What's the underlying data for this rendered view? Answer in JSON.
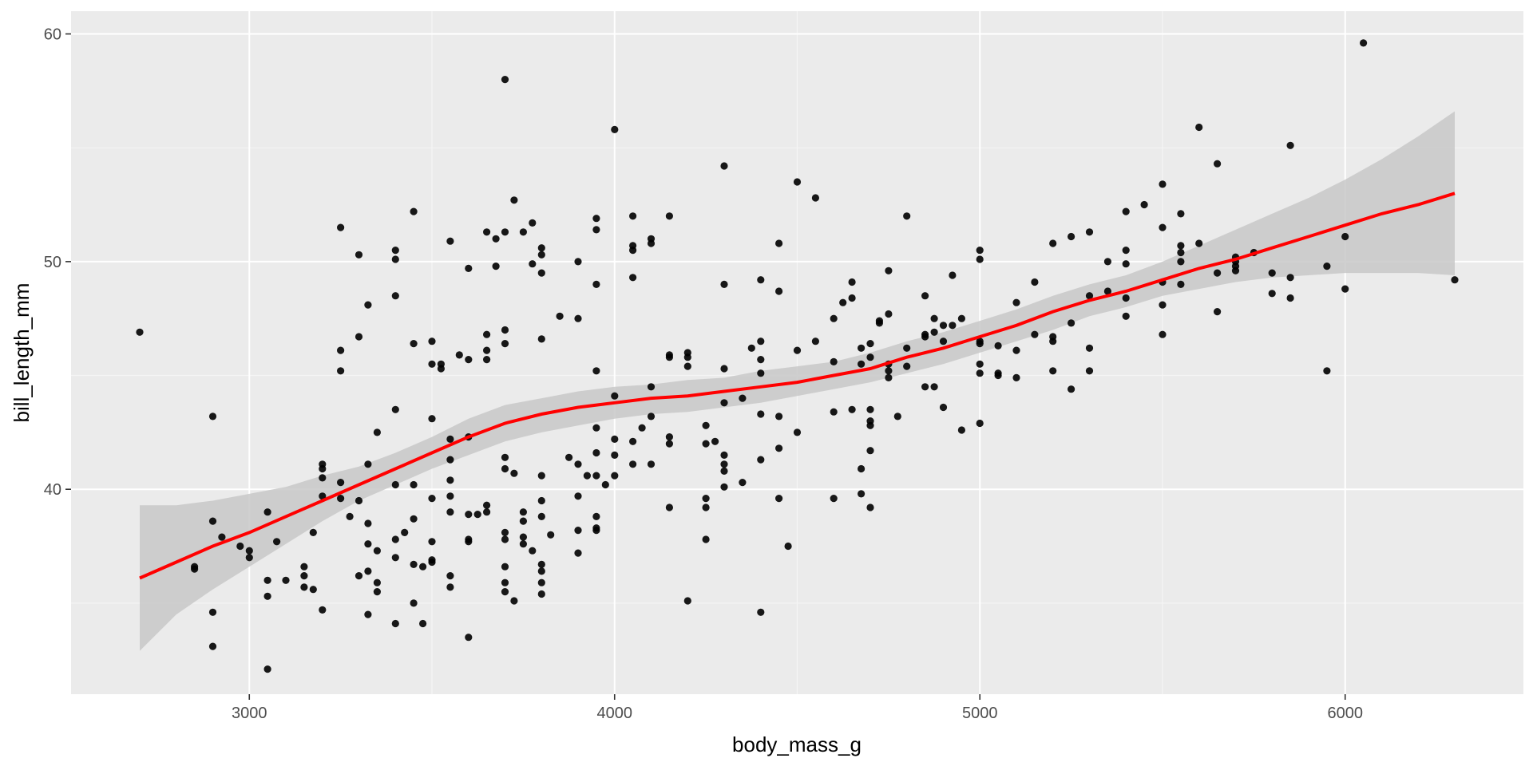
{
  "chart_data": {
    "type": "scatter",
    "xlabel": "body_mass_g",
    "ylabel": "bill_length_mm",
    "xlim": [
      2512,
      6488
    ],
    "ylim": [
      31.0,
      61.0
    ],
    "x_ticks": [
      3000,
      4000,
      5000,
      6000
    ],
    "x_tick_labels": [
      "3000",
      "4000",
      "5000",
      "6000"
    ],
    "y_ticks": [
      40,
      50,
      60
    ],
    "y_tick_labels": [
      "40",
      "50",
      "60"
    ],
    "grid": true,
    "legend": "none",
    "colors": {
      "panel_background": "#ebebeb",
      "grid_major": "#ffffff",
      "point": "#000000",
      "smooth_line": "#ff0000",
      "confidence_band": "#c8c8c8"
    },
    "points": [
      [
        2700,
        46.9
      ],
      [
        2850,
        36.5
      ],
      [
        2850,
        36.6
      ],
      [
        2900,
        43.2
      ],
      [
        2900,
        38.6
      ],
      [
        2900,
        34.6
      ],
      [
        2900,
        33.1
      ],
      [
        2925,
        37.9
      ],
      [
        2975,
        37.5
      ],
      [
        3000,
        37.0
      ],
      [
        3000,
        37.3
      ],
      [
        3050,
        39.0
      ],
      [
        3050,
        36.0
      ],
      [
        3050,
        35.3
      ],
      [
        3050,
        32.1
      ],
      [
        3075,
        37.7
      ],
      [
        3100,
        36.0
      ],
      [
        3150,
        36.6
      ],
      [
        3150,
        36.2
      ],
      [
        3150,
        35.7
      ],
      [
        3175,
        38.1
      ],
      [
        3175,
        35.6
      ],
      [
        3200,
        41.1
      ],
      [
        3200,
        40.9
      ],
      [
        3200,
        40.5
      ],
      [
        3200,
        39.7
      ],
      [
        3200,
        34.7
      ],
      [
        3250,
        51.5
      ],
      [
        3250,
        46.1
      ],
      [
        3250,
        45.2
      ],
      [
        3250,
        40.3
      ],
      [
        3250,
        39.6
      ],
      [
        3275,
        38.8
      ],
      [
        3300,
        50.3
      ],
      [
        3300,
        46.7
      ],
      [
        3300,
        39.5
      ],
      [
        3300,
        36.2
      ],
      [
        3325,
        48.1
      ],
      [
        3325,
        41.1
      ],
      [
        3325,
        38.5
      ],
      [
        3325,
        37.6
      ],
      [
        3325,
        36.4
      ],
      [
        3325,
        34.5
      ],
      [
        3350,
        42.5
      ],
      [
        3350,
        37.3
      ],
      [
        3350,
        35.9
      ],
      [
        3350,
        35.5
      ],
      [
        3400,
        50.5
      ],
      [
        3400,
        50.1
      ],
      [
        3400,
        48.5
      ],
      [
        3400,
        43.5
      ],
      [
        3400,
        40.2
      ],
      [
        3400,
        37.8
      ],
      [
        3400,
        37.0
      ],
      [
        3400,
        34.1
      ],
      [
        3425,
        38.1
      ],
      [
        3450,
        52.2
      ],
      [
        3450,
        46.4
      ],
      [
        3450,
        40.2
      ],
      [
        3450,
        38.7
      ],
      [
        3450,
        36.7
      ],
      [
        3450,
        35.0
      ],
      [
        3475,
        36.6
      ],
      [
        3475,
        34.1
      ],
      [
        3500,
        46.5
      ],
      [
        3500,
        45.5
      ],
      [
        3500,
        43.1
      ],
      [
        3500,
        39.6
      ],
      [
        3500,
        37.7
      ],
      [
        3500,
        36.9
      ],
      [
        3500,
        36.8
      ],
      [
        3525,
        45.5
      ],
      [
        3525,
        45.3
      ],
      [
        3550,
        50.9
      ],
      [
        3550,
        42.2
      ],
      [
        3550,
        41.3
      ],
      [
        3550,
        40.4
      ],
      [
        3550,
        39.7
      ],
      [
        3550,
        39.0
      ],
      [
        3550,
        36.2
      ],
      [
        3550,
        35.7
      ],
      [
        3575,
        45.9
      ],
      [
        3600,
        49.7
      ],
      [
        3600,
        45.7
      ],
      [
        3600,
        42.3
      ],
      [
        3600,
        38.9
      ],
      [
        3600,
        37.8
      ],
      [
        3600,
        37.7
      ],
      [
        3600,
        33.5
      ],
      [
        3625,
        38.9
      ],
      [
        3650,
        51.3
      ],
      [
        3650,
        46.8
      ],
      [
        3650,
        46.1
      ],
      [
        3650,
        45.7
      ],
      [
        3650,
        39.3
      ],
      [
        3650,
        39.0
      ],
      [
        3675,
        51.0
      ],
      [
        3675,
        49.8
      ],
      [
        3700,
        58.0
      ],
      [
        3700,
        51.3
      ],
      [
        3700,
        47.0
      ],
      [
        3700,
        46.4
      ],
      [
        3700,
        41.4
      ],
      [
        3700,
        40.9
      ],
      [
        3700,
        38.1
      ],
      [
        3700,
        37.8
      ],
      [
        3700,
        36.6
      ],
      [
        3700,
        35.9
      ],
      [
        3700,
        35.5
      ],
      [
        3725,
        52.7
      ],
      [
        3725,
        40.7
      ],
      [
        3725,
        35.1
      ],
      [
        3750,
        51.3
      ],
      [
        3750,
        39.0
      ],
      [
        3750,
        38.6
      ],
      [
        3750,
        37.9
      ],
      [
        3750,
        37.6
      ],
      [
        3775,
        51.7
      ],
      [
        3775,
        49.9
      ],
      [
        3775,
        37.3
      ],
      [
        3800,
        50.6
      ],
      [
        3800,
        50.3
      ],
      [
        3800,
        49.5
      ],
      [
        3800,
        46.6
      ],
      [
        3800,
        40.6
      ],
      [
        3800,
        39.5
      ],
      [
        3800,
        38.8
      ],
      [
        3800,
        36.7
      ],
      [
        3800,
        36.4
      ],
      [
        3800,
        35.9
      ],
      [
        3800,
        35.4
      ],
      [
        3825,
        38.0
      ],
      [
        3850,
        47.6
      ],
      [
        3875,
        41.4
      ],
      [
        3900,
        50.0
      ],
      [
        3900,
        47.5
      ],
      [
        3900,
        41.1
      ],
      [
        3900,
        39.7
      ],
      [
        3900,
        38.2
      ],
      [
        3900,
        37.2
      ],
      [
        3925,
        40.6
      ],
      [
        3950,
        51.9
      ],
      [
        3950,
        51.4
      ],
      [
        3950,
        49.0
      ],
      [
        3950,
        45.2
      ],
      [
        3950,
        42.7
      ],
      [
        3950,
        41.6
      ],
      [
        3950,
        40.6
      ],
      [
        3950,
        38.8
      ],
      [
        3950,
        38.3
      ],
      [
        3950,
        38.2
      ],
      [
        3975,
        40.2
      ],
      [
        4000,
        55.8
      ],
      [
        4000,
        44.1
      ],
      [
        4000,
        42.2
      ],
      [
        4000,
        41.5
      ],
      [
        4000,
        40.6
      ],
      [
        4050,
        52.0
      ],
      [
        4050,
        50.7
      ],
      [
        4050,
        50.5
      ],
      [
        4050,
        49.3
      ],
      [
        4050,
        42.1
      ],
      [
        4050,
        41.1
      ],
      [
        4075,
        42.7
      ],
      [
        4100,
        51.0
      ],
      [
        4100,
        50.8
      ],
      [
        4100,
        44.5
      ],
      [
        4100,
        43.2
      ],
      [
        4100,
        41.1
      ],
      [
        4150,
        52.0
      ],
      [
        4150,
        45.9
      ],
      [
        4150,
        45.8
      ],
      [
        4150,
        42.3
      ],
      [
        4150,
        42.0
      ],
      [
        4150,
        39.2
      ],
      [
        4200,
        46.0
      ],
      [
        4200,
        45.8
      ],
      [
        4200,
        45.4
      ],
      [
        4200,
        35.1
      ],
      [
        4250,
        42.8
      ],
      [
        4250,
        42.0
      ],
      [
        4250,
        39.6
      ],
      [
        4250,
        39.2
      ],
      [
        4250,
        37.8
      ],
      [
        4275,
        42.1
      ],
      [
        4300,
        54.2
      ],
      [
        4300,
        49.0
      ],
      [
        4300,
        45.3
      ],
      [
        4300,
        43.8
      ],
      [
        4300,
        41.5
      ],
      [
        4300,
        41.1
      ],
      [
        4300,
        40.8
      ],
      [
        4300,
        40.1
      ],
      [
        4350,
        44.0
      ],
      [
        4350,
        40.3
      ],
      [
        4375,
        46.2
      ],
      [
        4400,
        49.2
      ],
      [
        4400,
        46.5
      ],
      [
        4400,
        45.7
      ],
      [
        4400,
        45.1
      ],
      [
        4400,
        43.3
      ],
      [
        4400,
        41.3
      ],
      [
        4400,
        34.6
      ],
      [
        4450,
        50.8
      ],
      [
        4450,
        48.7
      ],
      [
        4450,
        43.2
      ],
      [
        4450,
        41.8
      ],
      [
        4450,
        39.6
      ],
      [
        4475,
        37.5
      ],
      [
        4500,
        53.5
      ],
      [
        4500,
        46.1
      ],
      [
        4500,
        42.5
      ],
      [
        4550,
        52.8
      ],
      [
        4550,
        46.5
      ],
      [
        4600,
        47.5
      ],
      [
        4600,
        45.6
      ],
      [
        4600,
        43.4
      ],
      [
        4600,
        39.6
      ],
      [
        4625,
        48.2
      ],
      [
        4650,
        49.1
      ],
      [
        4650,
        48.4
      ],
      [
        4650,
        43.5
      ],
      [
        4675,
        45.5
      ],
      [
        4675,
        46.2
      ],
      [
        4675,
        40.9
      ],
      [
        4675,
        39.8
      ],
      [
        4700,
        46.4
      ],
      [
        4700,
        45.8
      ],
      [
        4700,
        43.5
      ],
      [
        4700,
        43.0
      ],
      [
        4700,
        42.8
      ],
      [
        4700,
        41.7
      ],
      [
        4700,
        39.2
      ],
      [
        4725,
        47.3
      ],
      [
        4725,
        47.4
      ],
      [
        4750,
        49.6
      ],
      [
        4750,
        47.7
      ],
      [
        4750,
        45.5
      ],
      [
        4750,
        45.2
      ],
      [
        4750,
        44.9
      ],
      [
        4775,
        43.2
      ],
      [
        4800,
        52.0
      ],
      [
        4800,
        46.2
      ],
      [
        4800,
        45.4
      ],
      [
        4850,
        48.5
      ],
      [
        4850,
        46.7
      ],
      [
        4850,
        46.8
      ],
      [
        4850,
        44.5
      ],
      [
        4875,
        47.5
      ],
      [
        4875,
        46.9
      ],
      [
        4875,
        44.5
      ],
      [
        4900,
        47.2
      ],
      [
        4900,
        46.5
      ],
      [
        4900,
        43.6
      ],
      [
        4925,
        49.4
      ],
      [
        4925,
        47.2
      ],
      [
        4950,
        47.5
      ],
      [
        4950,
        42.6
      ],
      [
        5000,
        50.5
      ],
      [
        5000,
        50.1
      ],
      [
        5000,
        46.5
      ],
      [
        5000,
        46.4
      ],
      [
        5000,
        45.5
      ],
      [
        5000,
        45.1
      ],
      [
        5000,
        42.9
      ],
      [
        5050,
        46.3
      ],
      [
        5050,
        45.1
      ],
      [
        5050,
        45.0
      ],
      [
        5100,
        48.2
      ],
      [
        5100,
        46.1
      ],
      [
        5100,
        44.9
      ],
      [
        5150,
        49.1
      ],
      [
        5150,
        46.8
      ],
      [
        5200,
        50.8
      ],
      [
        5200,
        46.7
      ],
      [
        5200,
        46.5
      ],
      [
        5200,
        45.2
      ],
      [
        5250,
        51.1
      ],
      [
        5250,
        47.3
      ],
      [
        5250,
        44.4
      ],
      [
        5300,
        51.3
      ],
      [
        5300,
        48.5
      ],
      [
        5300,
        46.2
      ],
      [
        5300,
        45.2
      ],
      [
        5350,
        50.0
      ],
      [
        5350,
        48.7
      ],
      [
        5400,
        52.2
      ],
      [
        5400,
        50.5
      ],
      [
        5400,
        49.9
      ],
      [
        5400,
        48.4
      ],
      [
        5400,
        47.6
      ],
      [
        5450,
        52.5
      ],
      [
        5500,
        53.4
      ],
      [
        5500,
        51.5
      ],
      [
        5500,
        49.1
      ],
      [
        5500,
        48.1
      ],
      [
        5500,
        46.8
      ],
      [
        5550,
        52.1
      ],
      [
        5550,
        50.7
      ],
      [
        5550,
        50.4
      ],
      [
        5550,
        50.0
      ],
      [
        5550,
        49.0
      ],
      [
        5600,
        55.9
      ],
      [
        5600,
        50.8
      ],
      [
        5650,
        54.3
      ],
      [
        5650,
        49.5
      ],
      [
        5650,
        47.8
      ],
      [
        5700,
        50.2
      ],
      [
        5700,
        50.0
      ],
      [
        5700,
        49.8
      ],
      [
        5700,
        49.6
      ],
      [
        5750,
        50.4
      ],
      [
        5800,
        49.5
      ],
      [
        5800,
        48.6
      ],
      [
        5850,
        55.1
      ],
      [
        5850,
        49.3
      ],
      [
        5850,
        48.4
      ],
      [
        5950,
        49.8
      ],
      [
        5950,
        45.2
      ],
      [
        6000,
        51.1
      ],
      [
        6000,
        48.8
      ],
      [
        6050,
        59.6
      ],
      [
        6300,
        49.2
      ]
    ],
    "smooth": {
      "method": "loess",
      "x": [
        2700,
        2800,
        2900,
        3000,
        3100,
        3200,
        3300,
        3400,
        3500,
        3600,
        3700,
        3800,
        3900,
        4000,
        4100,
        4200,
        4300,
        4400,
        4500,
        4600,
        4700,
        4800,
        4900,
        5000,
        5100,
        5200,
        5300,
        5400,
        5500,
        5600,
        5700,
        5800,
        5900,
        6000,
        6100,
        6200,
        6300
      ],
      "y": [
        36.1,
        36.8,
        37.5,
        38.1,
        38.8,
        39.5,
        40.2,
        40.9,
        41.6,
        42.3,
        42.9,
        43.3,
        43.6,
        43.8,
        44.0,
        44.1,
        44.3,
        44.5,
        44.7,
        45.0,
        45.3,
        45.8,
        46.2,
        46.7,
        47.2,
        47.8,
        48.3,
        48.7,
        49.2,
        49.7,
        50.1,
        50.6,
        51.1,
        51.6,
        52.1,
        52.5,
        53.0
      ],
      "ymin": [
        32.9,
        34.5,
        35.6,
        36.6,
        37.6,
        38.6,
        39.5,
        40.2,
        40.9,
        41.5,
        42.1,
        42.5,
        42.8,
        43.1,
        43.3,
        43.4,
        43.6,
        43.8,
        44.1,
        44.4,
        44.7,
        45.1,
        45.5,
        46.0,
        46.5,
        47.0,
        47.6,
        48.0,
        48.5,
        48.8,
        49.1,
        49.3,
        49.4,
        49.5,
        49.5,
        49.5,
        49.4
      ],
      "ymax": [
        39.3,
        39.3,
        39.5,
        39.8,
        40.1,
        40.6,
        41.0,
        41.6,
        42.3,
        43.1,
        43.7,
        44.0,
        44.3,
        44.5,
        44.6,
        44.8,
        44.9,
        45.2,
        45.4,
        45.6,
        46.0,
        46.5,
        46.9,
        47.4,
        47.9,
        48.5,
        49.0,
        49.4,
        50.0,
        50.7,
        51.4,
        52.1,
        52.8,
        53.6,
        54.5,
        55.5,
        56.6
      ]
    }
  }
}
